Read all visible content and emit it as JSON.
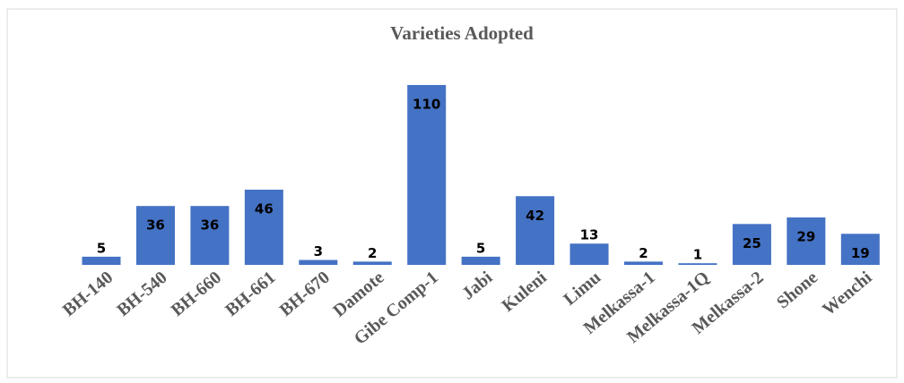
{
  "chart_data": {
    "type": "bar",
    "title": "Varieties Adopted",
    "categories": [
      "BH-140",
      "BH-540",
      "BH-660",
      "BH-661",
      "BH-670",
      "Damote",
      "Gibe Comp-1",
      "Jabi",
      "Kuleni",
      "Limu",
      "Melkassa-1",
      "Melkassa-1Q",
      "Melkassa-2",
      "Shone",
      "Wenchi"
    ],
    "values": [
      5,
      36,
      36,
      46,
      3,
      2,
      110,
      5,
      42,
      13,
      2,
      1,
      25,
      29,
      19
    ],
    "color": "#4472c4"
  }
}
